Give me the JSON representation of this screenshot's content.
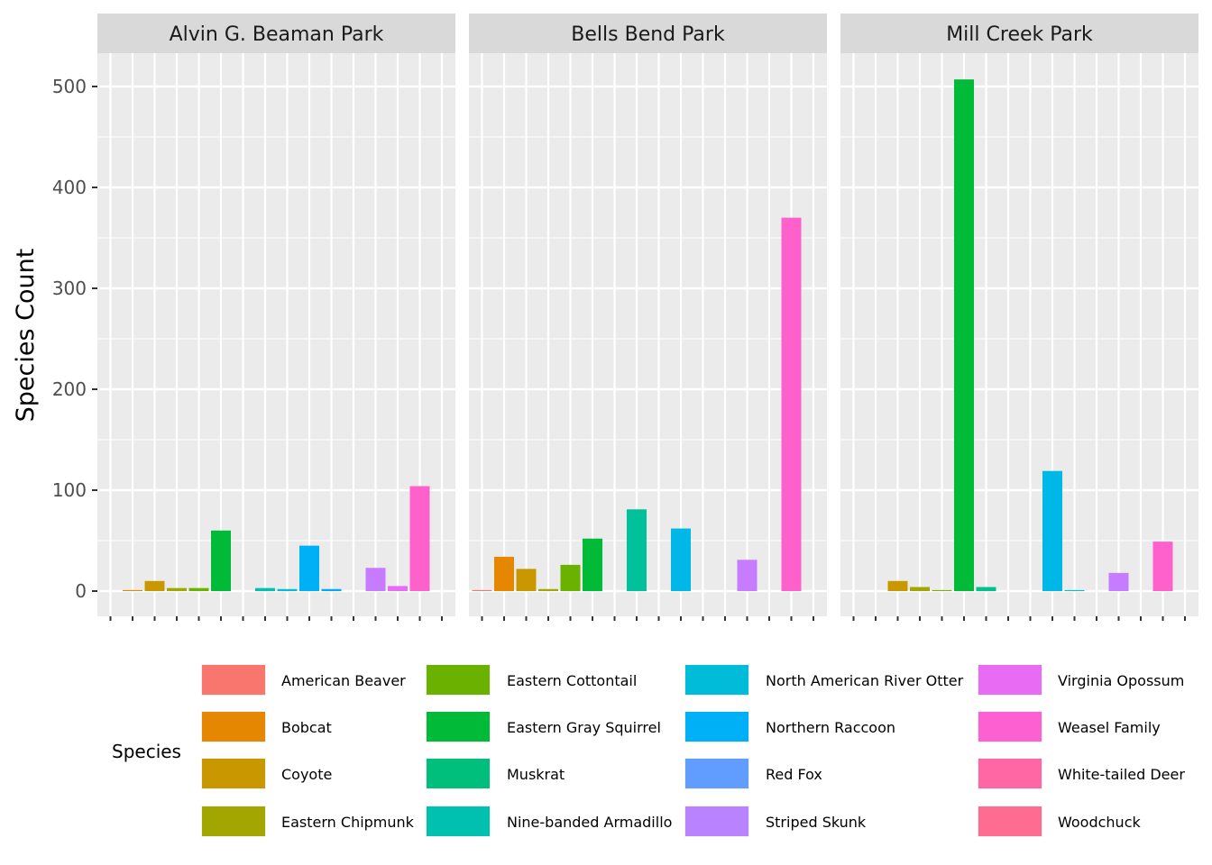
{
  "chart_data": {
    "type": "bar",
    "title": "",
    "xlabel": "",
    "ylabel": "Species Count",
    "ylim": [
      -28,
      540
    ],
    "yticks": [
      0,
      100,
      200,
      300,
      400,
      500
    ],
    "ytick_labels": [
      "0",
      "100",
      "200",
      "300",
      "400",
      "500"
    ],
    "facets": [
      "Alvin G. Beaman Park",
      "Bells Bend Park",
      "Mill Creek Park"
    ],
    "legend": {
      "title": "Species",
      "position": "bottom"
    },
    "species": [
      {
        "name": "American Beaver",
        "color": "#F8766D"
      },
      {
        "name": "Bobcat",
        "color": "#E58700"
      },
      {
        "name": "Coyote",
        "color": "#C99800"
      },
      {
        "name": "Eastern Chipmunk",
        "color": "#A3A500"
      },
      {
        "name": "Eastern Cottontail",
        "color": "#6BB100"
      },
      {
        "name": "Eastern Gray Squirrel",
        "color": "#00BA38"
      },
      {
        "name": "Muskrat",
        "color": "#00BF7D"
      },
      {
        "name": "Nine-banded Armadillo",
        "color": "#00C0AF"
      },
      {
        "name": "North American River Otter",
        "color": "#00BCD8"
      },
      {
        "name": "Northern Raccoon",
        "color": "#00B0F6"
      },
      {
        "name": "Red Fox",
        "color": "#619CFF"
      },
      {
        "name": "Striped Skunk",
        "color": "#B983FF"
      },
      {
        "name": "Virginia Opossum",
        "color": "#E76BF3"
      },
      {
        "name": "Weasel Family",
        "color": "#FD61D1"
      },
      {
        "name": "White-tailed Deer",
        "color": "#FF67A4"
      },
      {
        "name": "Woodchuck",
        "color": "#FF6C91"
      }
    ],
    "x_slots": 16,
    "panels": [
      {
        "park": "Alvin G. Beaman Park",
        "bars": [
          {
            "slot": 2,
            "value": 1,
            "color": "#E58700"
          },
          {
            "slot": 3,
            "value": 10,
            "color": "#C99800"
          },
          {
            "slot": 4,
            "value": 3,
            "color": "#A3A500"
          },
          {
            "slot": 5,
            "value": 3,
            "color": "#6BB100"
          },
          {
            "slot": 6,
            "value": 60,
            "color": "#00BA38"
          },
          {
            "slot": 8,
            "value": 3,
            "color": "#00C0AF"
          },
          {
            "slot": 9,
            "value": 2,
            "color": "#00BCD8"
          },
          {
            "slot": 10,
            "value": 45,
            "color": "#00B0F6"
          },
          {
            "slot": 11,
            "value": 2,
            "color": "#00A9FF"
          },
          {
            "slot": 13,
            "value": 23,
            "color": "#C77CFF"
          },
          {
            "slot": 14,
            "value": 5,
            "color": "#E76BF3"
          },
          {
            "slot": 15,
            "value": 104,
            "color": "#FF61CC"
          }
        ]
      },
      {
        "park": "Bells Bend Park",
        "bars": [
          {
            "slot": 1,
            "value": 1,
            "color": "#F8766D"
          },
          {
            "slot": 2,
            "value": 34,
            "color": "#E58700"
          },
          {
            "slot": 3,
            "value": 22,
            "color": "#C99800"
          },
          {
            "slot": 4,
            "value": 2,
            "color": "#A3A500"
          },
          {
            "slot": 5,
            "value": 26,
            "color": "#6BB100"
          },
          {
            "slot": 6,
            "value": 52,
            "color": "#00BA38"
          },
          {
            "slot": 8,
            "value": 81,
            "color": "#00C19A"
          },
          {
            "slot": 10,
            "value": 62,
            "color": "#00B8E7"
          },
          {
            "slot": 13,
            "value": 31,
            "color": "#C77CFF"
          },
          {
            "slot": 15,
            "value": 370,
            "color": "#FF61CC"
          }
        ]
      },
      {
        "park": "Mill Creek Park",
        "bars": [
          {
            "slot": 3,
            "value": 10,
            "color": "#C99800"
          },
          {
            "slot": 4,
            "value": 4,
            "color": "#A3A500"
          },
          {
            "slot": 5,
            "value": 1,
            "color": "#7CAE00"
          },
          {
            "slot": 6,
            "value": 507,
            "color": "#00BA38"
          },
          {
            "slot": 7,
            "value": 4,
            "color": "#00C08B"
          },
          {
            "slot": 10,
            "value": 119,
            "color": "#00B8E7"
          },
          {
            "slot": 11,
            "value": 1,
            "color": "#00BCD8"
          },
          {
            "slot": 13,
            "value": 18,
            "color": "#C77CFF"
          },
          {
            "slot": 15,
            "value": 49,
            "color": "#FF61CC"
          }
        ]
      }
    ]
  }
}
